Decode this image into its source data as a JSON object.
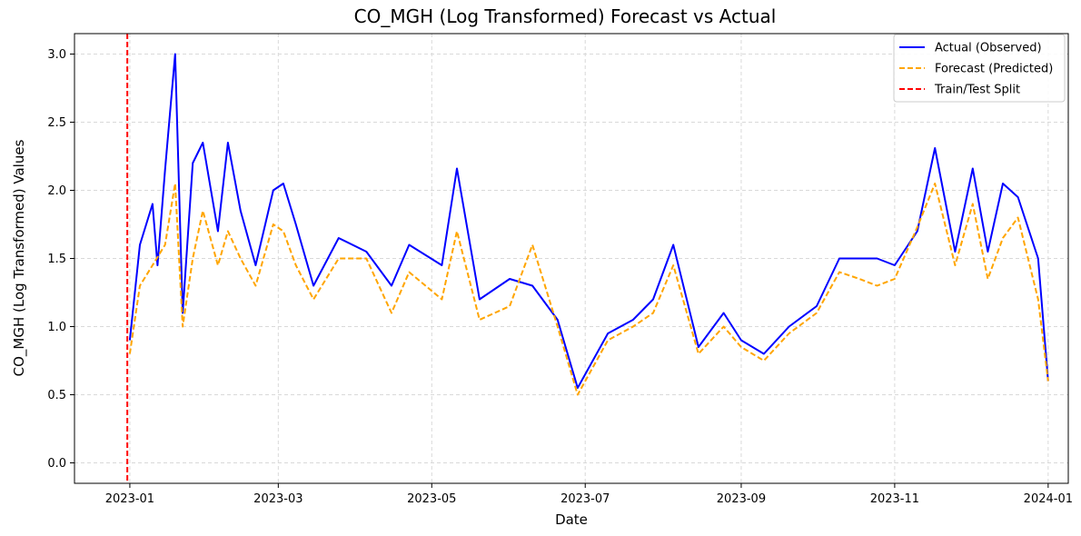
{
  "chart_data": {
    "type": "line",
    "title": "CO_MGH (Log Transformed) Forecast vs Actual",
    "xlabel": "Date",
    "ylabel": "CO_MGH (Log Transformed) Values",
    "x_range": [
      "2022-12-10",
      "2024-01-09"
    ],
    "ylim": [
      -0.15,
      3.15
    ],
    "x_ticks": [
      "2023-01-01",
      "2023-03-01",
      "2023-05-01",
      "2023-07-01",
      "2023-09-01",
      "2023-11-01",
      "2024-01-01"
    ],
    "x_tick_labels": [
      "2023-01",
      "2023-03",
      "2023-05",
      "2023-07",
      "2023-09",
      "2023-11",
      "2024-01"
    ],
    "y_ticks": [
      0.0,
      0.5,
      1.0,
      1.5,
      2.0,
      2.5,
      3.0
    ],
    "y_tick_labels": [
      "0.0",
      "0.5",
      "1.0",
      "1.5",
      "2.0",
      "2.5",
      "3.0"
    ],
    "grid": true,
    "legend_position": "top-right",
    "series": [
      {
        "name": "Actual (Observed)",
        "color": "#0000ff",
        "style": "solid",
        "x": [
          "2023-01-01",
          "2023-01-05",
          "2023-01-10",
          "2023-01-12",
          "2023-01-15",
          "2023-01-19",
          "2023-01-22",
          "2023-01-26",
          "2023-01-30",
          "2023-02-05",
          "2023-02-09",
          "2023-02-14",
          "2023-02-20",
          "2023-02-27",
          "2023-03-03",
          "2023-03-08",
          "2023-03-15",
          "2023-03-25",
          "2023-04-05",
          "2023-04-15",
          "2023-04-22",
          "2023-05-05",
          "2023-05-11",
          "2023-05-20",
          "2023-06-01",
          "2023-06-10",
          "2023-06-20",
          "2023-06-28",
          "2023-07-10",
          "2023-07-20",
          "2023-07-28",
          "2023-08-05",
          "2023-08-15",
          "2023-08-25",
          "2023-09-01",
          "2023-09-10",
          "2023-09-20",
          "2023-10-01",
          "2023-10-10",
          "2023-10-18",
          "2023-10-25",
          "2023-11-01",
          "2023-11-10",
          "2023-11-17",
          "2023-11-25",
          "2023-12-02",
          "2023-12-08",
          "2023-12-14",
          "2023-12-20",
          "2023-12-28",
          "2024-01-01"
        ],
        "y": [
          0.9,
          1.6,
          1.9,
          1.45,
          2.15,
          3.0,
          1.1,
          2.2,
          2.35,
          1.7,
          2.35,
          1.85,
          1.45,
          2.0,
          2.05,
          1.75,
          1.3,
          1.65,
          1.55,
          1.3,
          1.6,
          1.45,
          2.16,
          1.2,
          1.35,
          1.3,
          1.05,
          0.55,
          0.95,
          1.05,
          1.2,
          1.6,
          0.85,
          1.1,
          0.9,
          0.8,
          1.0,
          1.15,
          1.5,
          1.5,
          1.5,
          1.45,
          1.7,
          2.31,
          1.55,
          2.16,
          1.55,
          2.05,
          1.95,
          1.5,
          0.6
        ]
      },
      {
        "name": "Forecast (Predicted)",
        "color": "#ffa500",
        "style": "dashed",
        "x": [
          "2023-01-01",
          "2023-01-05",
          "2023-01-10",
          "2023-01-15",
          "2023-01-19",
          "2023-01-22",
          "2023-01-26",
          "2023-01-30",
          "2023-02-05",
          "2023-02-09",
          "2023-02-14",
          "2023-02-20",
          "2023-02-27",
          "2023-03-03",
          "2023-03-08",
          "2023-03-15",
          "2023-03-25",
          "2023-04-05",
          "2023-04-15",
          "2023-04-22",
          "2023-05-05",
          "2023-05-11",
          "2023-05-20",
          "2023-06-01",
          "2023-06-10",
          "2023-06-20",
          "2023-06-28",
          "2023-07-10",
          "2023-07-20",
          "2023-07-28",
          "2023-08-05",
          "2023-08-15",
          "2023-08-25",
          "2023-09-01",
          "2023-09-10",
          "2023-09-20",
          "2023-10-01",
          "2023-10-10",
          "2023-10-18",
          "2023-10-25",
          "2023-11-01",
          "2023-11-10",
          "2023-11-17",
          "2023-11-25",
          "2023-12-02",
          "2023-12-08",
          "2023-12-14",
          "2023-12-20",
          "2023-12-28",
          "2024-01-01"
        ],
        "y": [
          0.8,
          1.3,
          1.45,
          1.6,
          2.05,
          1.0,
          1.5,
          1.85,
          1.45,
          1.7,
          1.5,
          1.3,
          1.75,
          1.7,
          1.45,
          1.2,
          1.5,
          1.5,
          1.1,
          1.4,
          1.2,
          1.7,
          1.05,
          1.15,
          1.6,
          1.0,
          0.5,
          0.9,
          1.0,
          1.1,
          1.45,
          0.8,
          1.0,
          0.85,
          0.75,
          0.95,
          1.1,
          1.4,
          1.35,
          1.3,
          1.35,
          1.73,
          2.05,
          1.45,
          1.9,
          1.35,
          1.65,
          1.8,
          1.2,
          0.6
        ]
      }
    ],
    "annotations": [
      {
        "name": "Train/Test Split",
        "type": "vline",
        "x": "2022-12-31",
        "color": "#ff0000",
        "style": "dashed"
      }
    ]
  }
}
